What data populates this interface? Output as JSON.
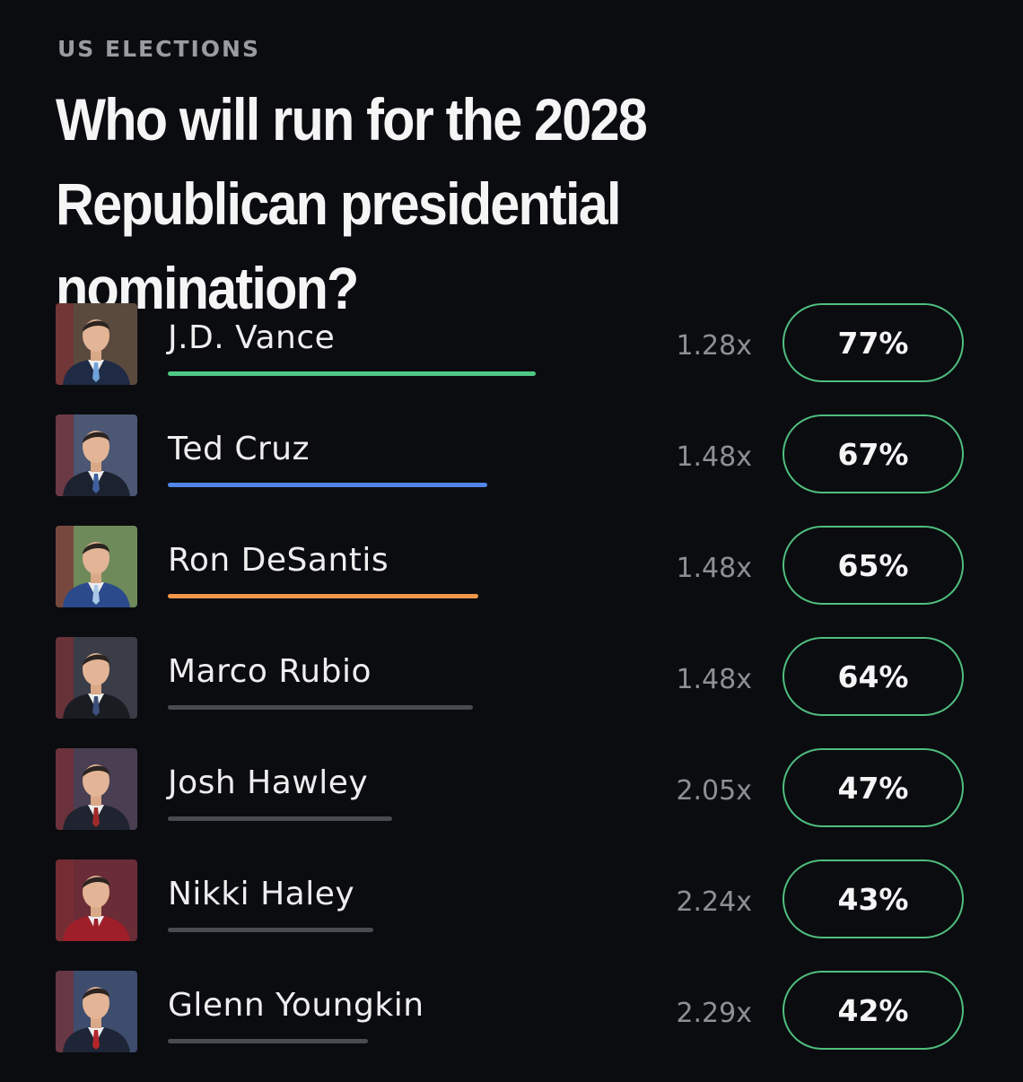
{
  "header": {
    "category": "US ELECTIONS",
    "title": "Who will run for the 2028 Republican presidential nomination?"
  },
  "candidates": [
    {
      "name": "J.D. Vance",
      "multiplier": "1.28x",
      "percent": "77%",
      "value": 77,
      "bar_color": "#4fc985",
      "avatar_icon": "candidate-photo",
      "suit_color": "#1f2a44",
      "tie_color": "#6fa3d8",
      "bg_color": "#5a4a3e"
    },
    {
      "name": "Ted Cruz",
      "multiplier": "1.48x",
      "percent": "67%",
      "value": 67,
      "bar_color": "#4f86e8",
      "avatar_icon": "candidate-photo",
      "suit_color": "#1d2230",
      "tie_color": "#3e5f9e",
      "bg_color": "#4b5773"
    },
    {
      "name": "Ron DeSantis",
      "multiplier": "1.48x",
      "percent": "65%",
      "value": 65,
      "bar_color": "#f0974a",
      "avatar_icon": "candidate-photo",
      "suit_color": "#2a4a8c",
      "tie_color": "#a8c7e8",
      "bg_color": "#6f8a5a"
    },
    {
      "name": "Marco Rubio",
      "multiplier": "1.48x",
      "percent": "64%",
      "value": 64,
      "bar_color": "#4a4b50",
      "avatar_icon": "candidate-photo",
      "suit_color": "#1a1c22",
      "tie_color": "#3c4f7a",
      "bg_color": "#3a3d48"
    },
    {
      "name": "Josh Hawley",
      "multiplier": "2.05x",
      "percent": "47%",
      "value": 47,
      "bar_color": "#4a4b50",
      "avatar_icon": "candidate-photo",
      "suit_color": "#1f2430",
      "tie_color": "#9e2a2a",
      "bg_color": "#4a3f52"
    },
    {
      "name": "Nikki Haley",
      "multiplier": "2.24x",
      "percent": "43%",
      "value": 43,
      "bar_color": "#4a4b50",
      "avatar_icon": "candidate-photo",
      "suit_color": "#9e1f2a",
      "tie_color": "#9e1f2a",
      "bg_color": "#6a2c36"
    },
    {
      "name": "Glenn Youngkin",
      "multiplier": "2.29x",
      "percent": "42%",
      "value": 42,
      "bar_color": "#4a4b50",
      "avatar_icon": "candidate-photo",
      "suit_color": "#1e2536",
      "tie_color": "#b5262b",
      "bg_color": "#3e4d6e"
    }
  ],
  "colors": {
    "background": "#0b0c10",
    "pill_border": "#4fbf7e",
    "muted_text": "#8e8f94"
  }
}
